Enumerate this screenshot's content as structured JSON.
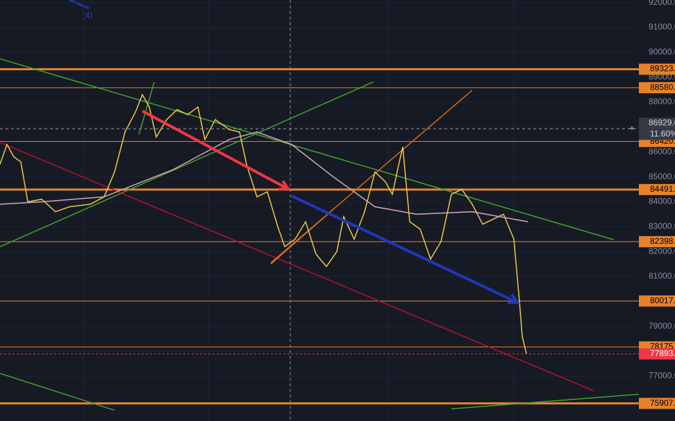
{
  "chart_data": {
    "type": "line",
    "xlim": [
      0,
      920
    ],
    "ylim": [
      75200,
      92100
    ],
    "yticks": [
      {
        "value": 77000,
        "label": "77000.0"
      },
      {
        "value": 78000,
        "label": "78000.0"
      },
      {
        "value": 79000,
        "label": "79000.0"
      },
      {
        "value": 80000,
        "label": "80000.0"
      },
      {
        "value": 81000,
        "label": "81000.0"
      },
      {
        "value": 82000,
        "label": "82000.0"
      },
      {
        "value": 83000,
        "label": "83000.0"
      },
      {
        "value": 84000,
        "label": "84000.0"
      },
      {
        "value": 85000,
        "label": "85000.0"
      },
      {
        "value": 86000,
        "label": "86000.0"
      },
      {
        "value": 87000,
        "label": "87000.0"
      },
      {
        "value": 88000,
        "label": "88000.0"
      },
      {
        "value": 89000,
        "label": "89000.0"
      },
      {
        "value": 90000,
        "label": "90000.0"
      },
      {
        "value": 91000,
        "label": "91000.0"
      },
      {
        "value": 92000,
        "label": "92000.0"
      }
    ],
    "grid": true,
    "series": [
      {
        "color": "#f2c744",
        "x": [
          0,
          10,
          20,
          30,
          40,
          60,
          80,
          100,
          130,
          150,
          165,
          180,
          195,
          205,
          215,
          225,
          240,
          255,
          270,
          285,
          295,
          310,
          330,
          345,
          355,
          370,
          385,
          400,
          410,
          425,
          440,
          455,
          470,
          485,
          495,
          510,
          525,
          540,
          555,
          565,
          575,
          580,
          590,
          605,
          620,
          635,
          650,
          665,
          680,
          695,
          710,
          725,
          740,
          748,
          752,
          758
        ],
        "values": [
          85500,
          86300,
          85800,
          85600,
          84000,
          84100,
          83600,
          83800,
          83900,
          84200,
          85200,
          86800,
          87600,
          88300,
          87800,
          86600,
          87300,
          87700,
          87500,
          87800,
          86500,
          87300,
          86900,
          86800,
          85500,
          84200,
          84400,
          83000,
          82200,
          82500,
          83200,
          81900,
          81400,
          82000,
          83400,
          82500,
          83600,
          85200,
          84800,
          84300,
          85600,
          86200,
          83200,
          82900,
          81700,
          82400,
          84300,
          84500,
          83900,
          83100,
          83300,
          83500,
          82500,
          80000,
          78600,
          77900
        ]
      },
      {
        "color": "#d9a7b8",
        "x": [
          0,
          60,
          150,
          250,
          330,
          370,
          420,
          480,
          540,
          600,
          680,
          760
        ],
        "values": [
          83900,
          84000,
          84200,
          85300,
          86500,
          86800,
          86300,
          85000,
          83800,
          83500,
          83600,
          83200
        ]
      }
    ],
    "levels": [
      {
        "value": 89323,
        "label": "89323.0",
        "style": "thick",
        "color": "#e8822a"
      },
      {
        "value": 88580,
        "label": "88580.0",
        "style": "thin",
        "color": "#e8822a"
      },
      {
        "value": 86420,
        "label": "86420.0",
        "style": "thin",
        "color": "#e8822a"
      },
      {
        "value": 84491,
        "label": "84491.0",
        "style": "thick",
        "color": "#e8822a"
      },
      {
        "value": 82398,
        "label": "82398.0",
        "style": "thin",
        "color": "#e8822a"
      },
      {
        "value": 80017,
        "label": "80017.0",
        "style": "thin",
        "color": "#e8822a"
      },
      {
        "value": 78175,
        "label": "78175.0",
        "style": "thin",
        "color": "#e8822a"
      },
      {
        "value": 75907,
        "label": "75907.0",
        "style": "thick",
        "color": "#e8822a"
      }
    ],
    "last_price": {
      "value": 77893,
      "label": "77893.0",
      "color": "#f23645"
    },
    "crosshair": {
      "x": 418,
      "value": 86929,
      "label": "86929.0",
      "change": {
        "value": 11.6,
        "label": "11.60%"
      }
    },
    "trendlines": [
      {
        "x": [
          0,
          884
        ],
        "values": [
          89737,
          82475
        ],
        "color": "#3fa52c"
      },
      {
        "x": [
          0,
          538
        ],
        "values": [
          82196,
          88816
        ],
        "color": "#3fa52c"
      },
      {
        "x": [
          0,
          855
        ],
        "values": [
          86385,
          76413
        ],
        "color": "#b5122a"
      },
      {
        "x": [
          390,
          680
        ],
        "values": [
          81553,
          88480
        ],
        "color": "#d46b1f"
      },
      {
        "x": [
          390,
          478
        ],
        "values": [
          81500,
          83650
        ],
        "color": "#d46b1f"
      },
      {
        "x": [
          650,
          920
        ],
        "values": [
          75687,
          76274
        ],
        "color": "#3fa52c"
      },
      {
        "x": [
          0,
          165
        ],
        "values": [
          77112,
          75631
        ],
        "color": "#3fa52c"
      },
      {
        "x": [
          200,
          222
        ],
        "values": [
          86700,
          88800
        ],
        "color": "#3fa52c"
      }
    ],
    "arrows": [
      {
        "x": [
          205,
          415
        ],
        "values": [
          87642,
          84514
        ],
        "color": "#f23645"
      },
      {
        "x": [
          420,
          745
        ],
        "values": [
          84235,
          79961
        ],
        "color": "#2236b8"
      }
    ],
    "annotation": "(4)"
  }
}
